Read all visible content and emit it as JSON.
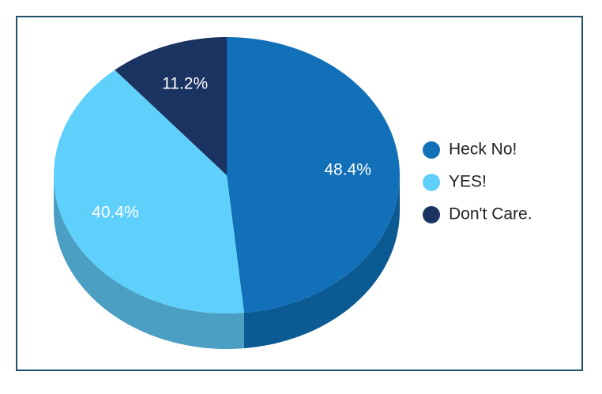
{
  "chart_data": {
    "type": "pie",
    "categories": [
      "Heck No!",
      "YES!",
      "Don't Care."
    ],
    "values": [
      48.4,
      40.4,
      11.2
    ],
    "value_labels": [
      "48.4%",
      "40.4%",
      "11.2%"
    ],
    "colors": [
      "#1170b8",
      "#5fd0fb",
      "#1b3360"
    ],
    "side_colors": [
      "#0c5a93",
      "#4a9fc2",
      "#13264a"
    ],
    "legend": "right"
  }
}
